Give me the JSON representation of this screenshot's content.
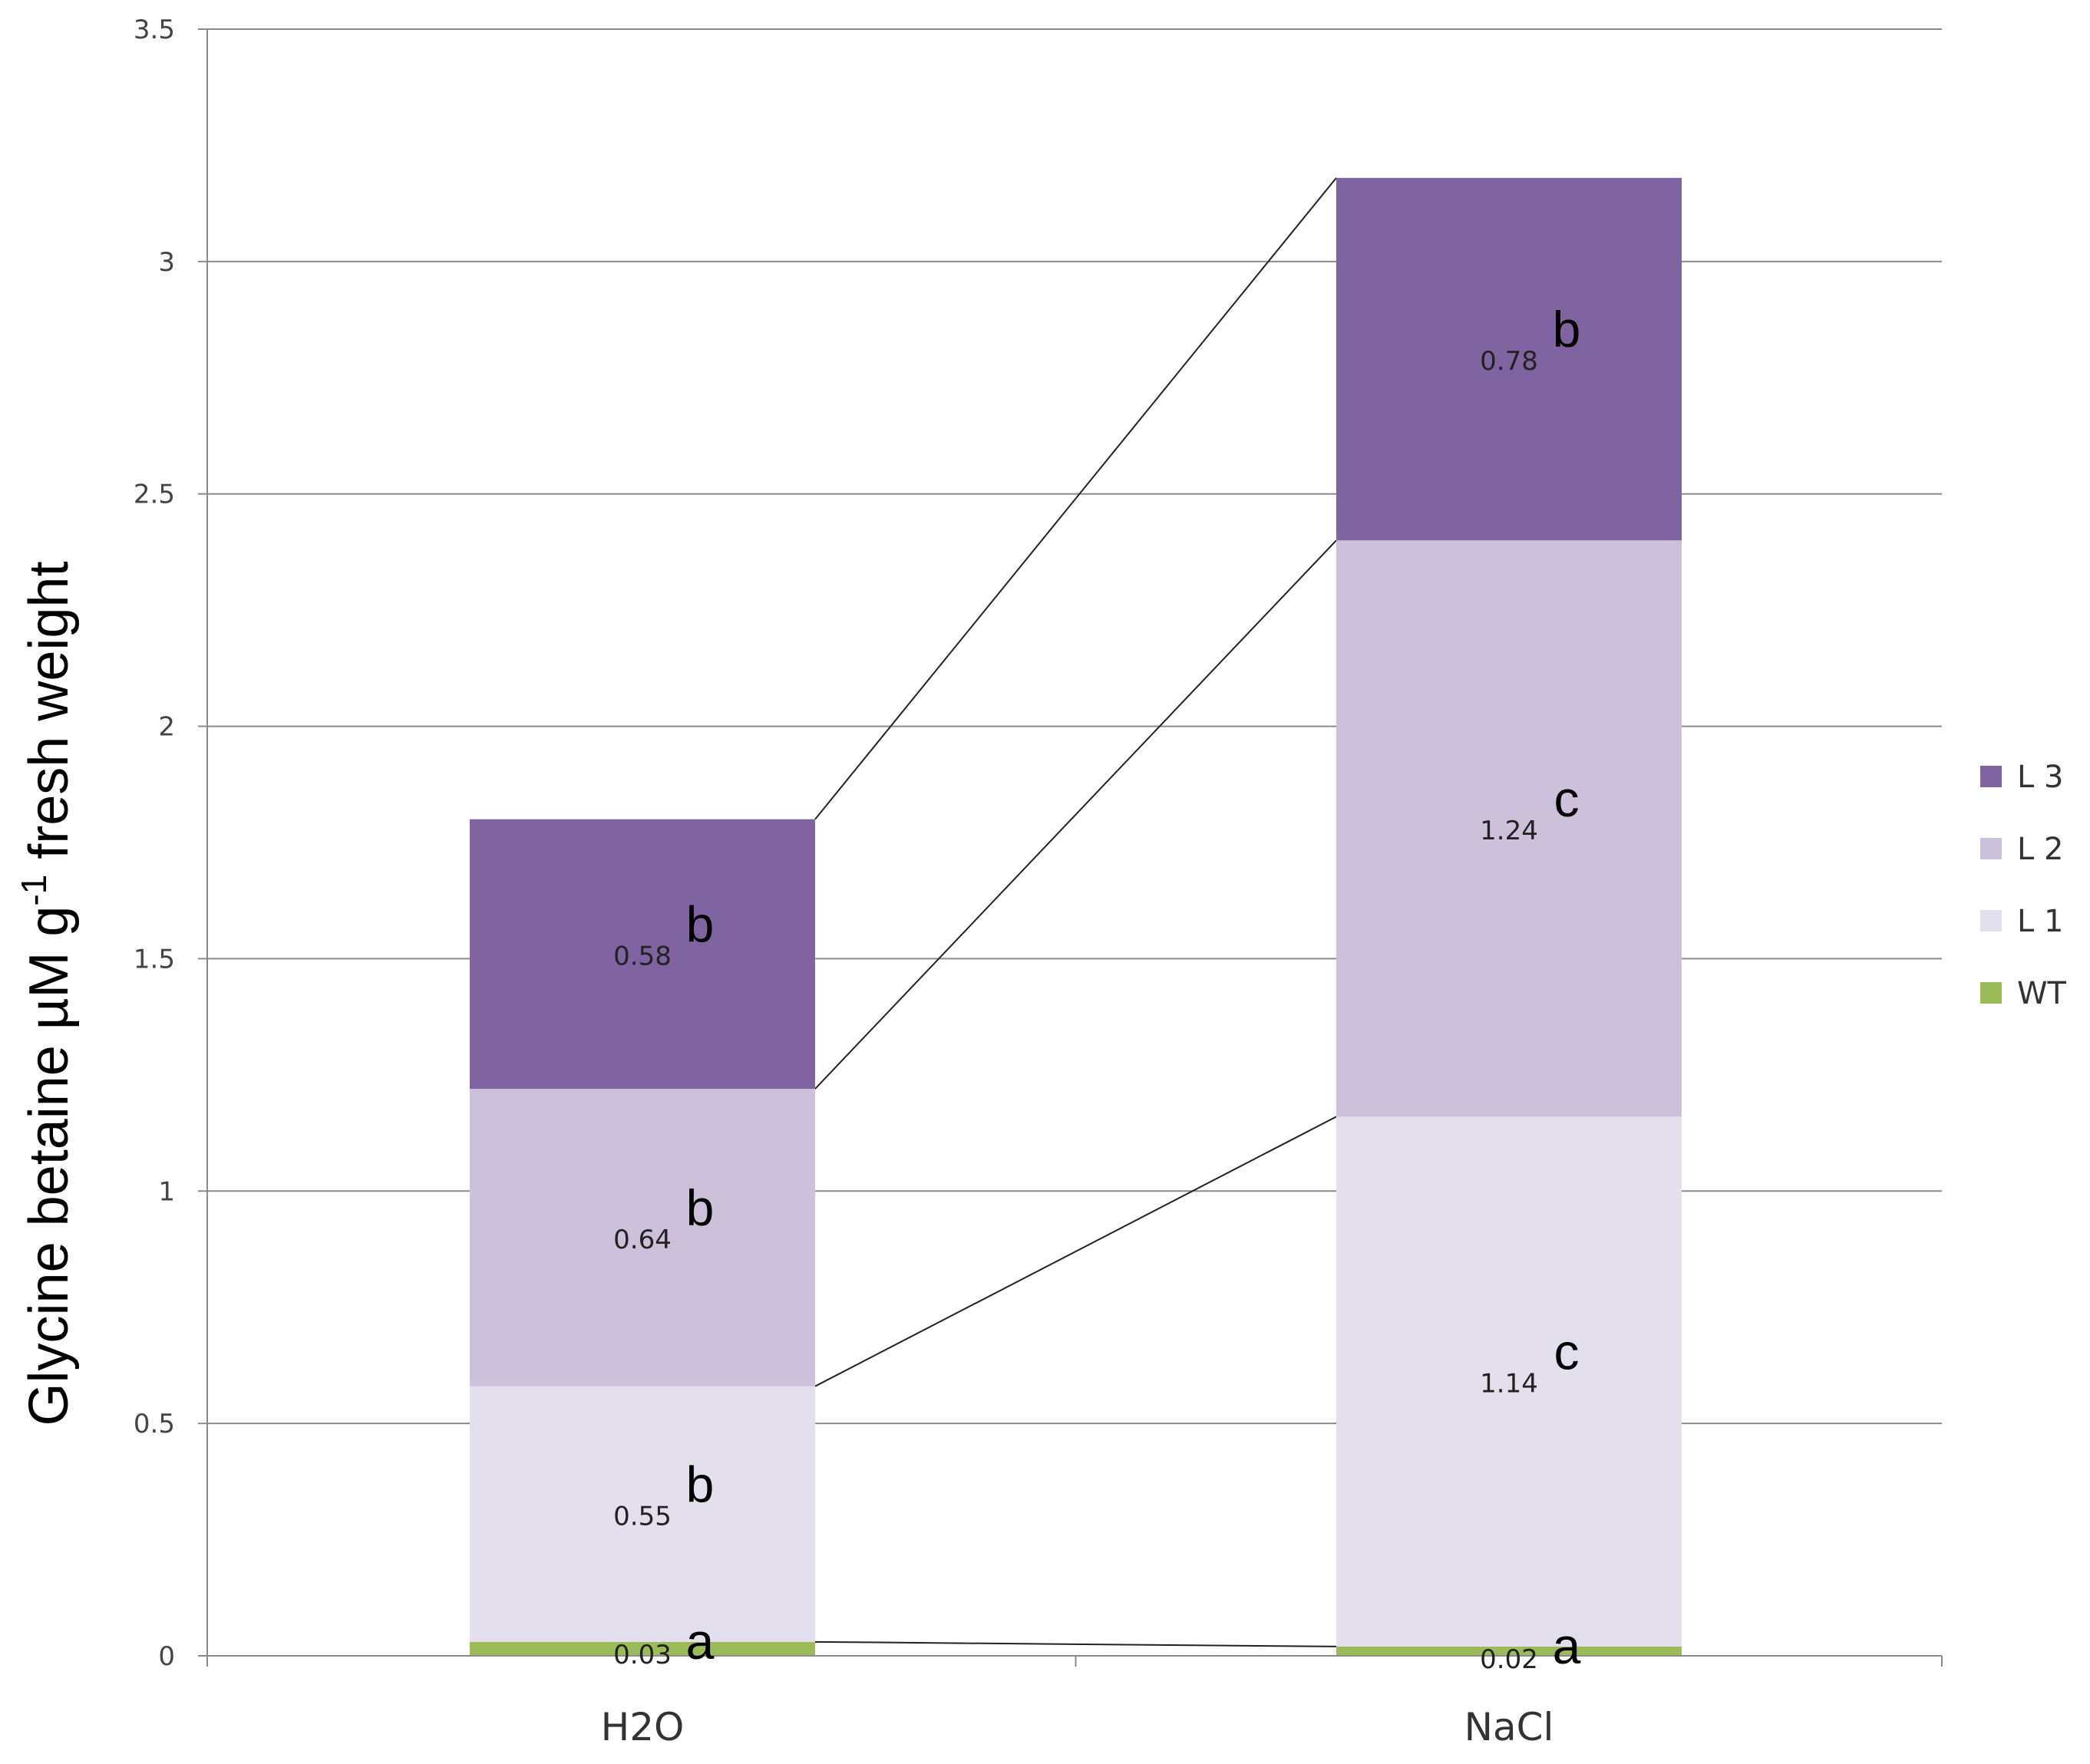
{
  "chart_data": {
    "type": "bar",
    "stacked": true,
    "categories": [
      "H2O",
      "NaCl"
    ],
    "series": [
      {
        "name": "WT",
        "values": [
          0.03,
          0.02
        ],
        "color": "#9bbb59",
        "data_labels": [
          "0.03",
          "0.02"
        ],
        "significance": [
          "a",
          "a"
        ]
      },
      {
        "name": "L 1",
        "values": [
          0.55,
          1.14
        ],
        "color": "#e4dfec",
        "data_labels": [
          "0.55",
          "1.14"
        ],
        "significance": [
          "b",
          "c"
        ]
      },
      {
        "name": "L 2",
        "values": [
          0.64,
          1.24
        ],
        "color": "#ccc0da",
        "data_labels": [
          "0.64",
          "1.24"
        ],
        "significance": [
          "b",
          "c"
        ]
      },
      {
        "name": "L 3",
        "values": [
          0.58,
          0.78
        ],
        "color": "#8064a2",
        "data_labels": [
          "0.58",
          "0.78"
        ],
        "significance": [
          "b",
          "b"
        ]
      }
    ],
    "ylabel_main": "Glycine betaine µM g",
    "ylabel_sup": "-1",
    "ylabel_tail": " fresh weight",
    "xlabel": "",
    "ylim": [
      0,
      3.5
    ],
    "yticks": [
      "0",
      "0.5",
      "1",
      "1.5",
      "2",
      "2.5",
      "3",
      "3.5"
    ],
    "grid": true,
    "legend_position": "right",
    "legend_order": [
      "L 3",
      "L 2",
      "L 1",
      "WT"
    ],
    "series_lines": true
  }
}
